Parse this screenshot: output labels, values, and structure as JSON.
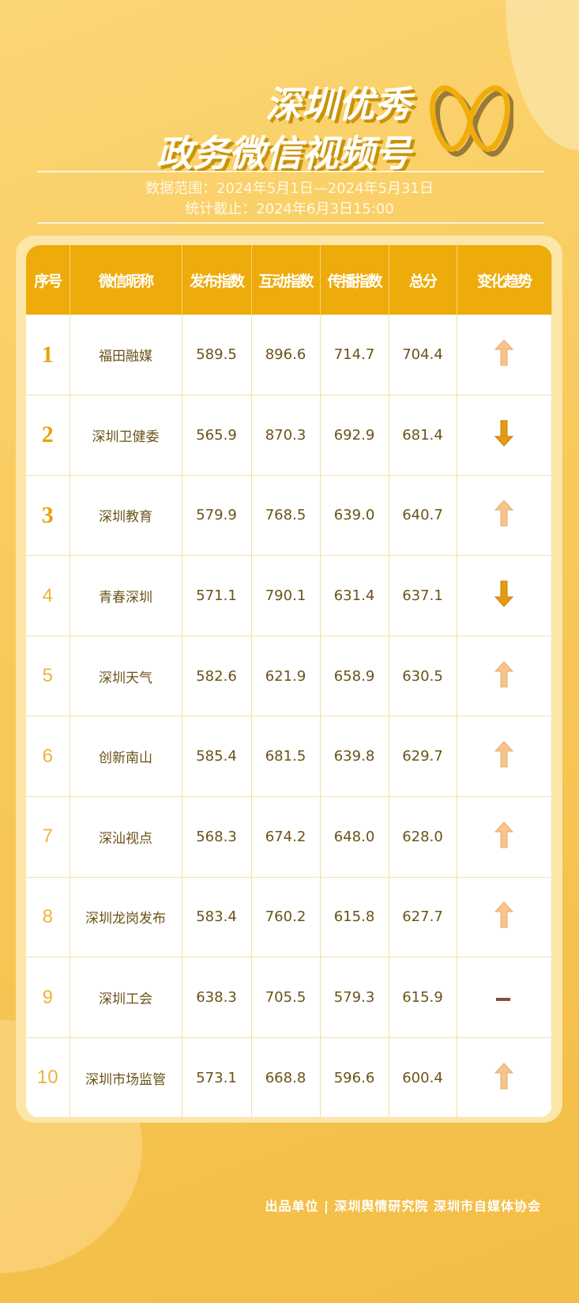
{
  "title": {
    "line1": "深圳优秀",
    "line2": "政务微信视频号"
  },
  "subtitle": {
    "range": "数据范围：2024年5月1日—2024年5月31日",
    "cutoff": "统计截止：2024年6月3日15:00"
  },
  "table": {
    "headers": [
      "序号",
      "微信昵称",
      "发布指数",
      "互动指数",
      "传播指数",
      "总分",
      "变化趋势"
    ],
    "rows": [
      {
        "rank": "1",
        "name": "福田融媒",
        "publish": "589.5",
        "interact": "896.6",
        "spread": "714.7",
        "total": "704.4",
        "trend": "up"
      },
      {
        "rank": "2",
        "name": "深圳卫健委",
        "publish": "565.9",
        "interact": "870.3",
        "spread": "692.9",
        "total": "681.4",
        "trend": "down"
      },
      {
        "rank": "3",
        "name": "深圳教育",
        "publish": "579.9",
        "interact": "768.5",
        "spread": "639.0",
        "total": "640.7",
        "trend": "up"
      },
      {
        "rank": "4",
        "name": "青春深圳",
        "publish": "571.1",
        "interact": "790.1",
        "spread": "631.4",
        "total": "637.1",
        "trend": "down"
      },
      {
        "rank": "5",
        "name": "深圳天气",
        "publish": "582.6",
        "interact": "621.9",
        "spread": "658.9",
        "total": "630.5",
        "trend": "up"
      },
      {
        "rank": "6",
        "name": "创新南山",
        "publish": "585.4",
        "interact": "681.5",
        "spread": "639.8",
        "total": "629.7",
        "trend": "up"
      },
      {
        "rank": "7",
        "name": "深汕视点",
        "publish": "568.3",
        "interact": "674.2",
        "spread": "648.0",
        "total": "628.0",
        "trend": "up"
      },
      {
        "rank": "8",
        "name": "深圳龙岗发布",
        "publish": "583.4",
        "interact": "760.2",
        "spread": "615.8",
        "total": "627.7",
        "trend": "up"
      },
      {
        "rank": "9",
        "name": "深圳工会",
        "publish": "638.3",
        "interact": "705.5",
        "spread": "579.3",
        "total": "615.9",
        "trend": "flat"
      },
      {
        "rank": "10",
        "name": "深圳市场监管",
        "publish": "573.1",
        "interact": "668.8",
        "spread": "596.6",
        "total": "600.4",
        "trend": "up"
      }
    ]
  },
  "footer": "出品单位 | 深圳舆情研究院 深圳市自媒体协会",
  "colors": {
    "header": "#eeac0a",
    "up": "#f6c48c",
    "down": "#e59a10",
    "flat": "#8a4a3a"
  }
}
